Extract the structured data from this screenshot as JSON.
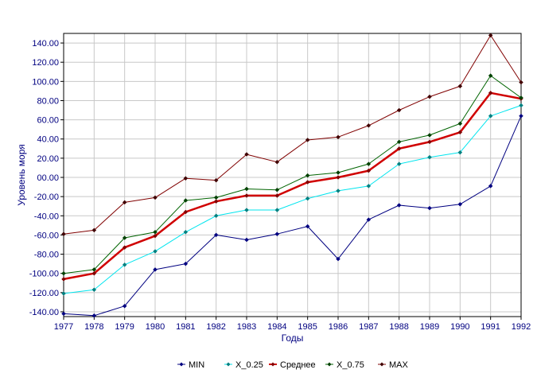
{
  "chart_data": {
    "type": "line",
    "xlabel": "Годы",
    "ylabel": "Уровень моря",
    "x": [
      1977,
      1978,
      1979,
      1980,
      1981,
      1982,
      1983,
      1984,
      1985,
      1986,
      1987,
      1988,
      1989,
      1990,
      1991,
      1992
    ],
    "x_ticks": [
      "1977",
      "1978",
      "1979",
      "1980",
      "1981",
      "1982",
      "1983",
      "1984",
      "1985",
      "1986",
      "1987",
      "1988",
      "1989",
      "1990",
      "1991",
      "1992"
    ],
    "ylim": [
      -145,
      150
    ],
    "y_ticks": [
      -140,
      -120,
      -100,
      -80,
      -60,
      -40,
      -20,
      0,
      20,
      40,
      60,
      80,
      100,
      120,
      140
    ],
    "y_tick_labels": [
      "-140.00",
      "-120.00",
      "-100.00",
      "-80.00",
      "-60.00",
      "-40.00",
      "-20.00",
      "00.00",
      "20.00",
      "40.00",
      "60.00",
      "80.00",
      "100.00",
      "120.00",
      "140.00"
    ],
    "grid": true,
    "legend_position": "bottom",
    "series": [
      {
        "name": "MIN",
        "color": "#000080",
        "marker": "#000080",
        "width": 1,
        "values": [
          -142,
          -144,
          -134,
          -96,
          -90,
          -60,
          -65,
          -59,
          -51,
          -85,
          -44,
          -29,
          -32,
          -28,
          -9,
          64
        ]
      },
      {
        "name": "X_0.25",
        "color": "#00e5ee",
        "marker": "#008080",
        "width": 1,
        "values": [
          -121,
          -117,
          -91,
          -77,
          -57,
          -40,
          -34,
          -34,
          -22,
          -14,
          -9,
          14,
          21,
          26,
          64,
          75
        ]
      },
      {
        "name": "Среднее",
        "color": "#d00000",
        "marker": "#800000",
        "width": 2.5,
        "values": [
          -106,
          -100,
          -73,
          -61,
          -36,
          -25,
          -19,
          -19,
          -5,
          0,
          7,
          30,
          37,
          47,
          88,
          82
        ]
      },
      {
        "name": "X_0.75",
        "color": "#006400",
        "marker": "#004000",
        "width": 1,
        "values": [
          -100,
          -96,
          -63,
          -57,
          -24,
          -21,
          -12,
          -13,
          2,
          5,
          14,
          37,
          44,
          56,
          106,
          83
        ]
      },
      {
        "name": "MAX",
        "color": "#800000",
        "marker": "#400000",
        "width": 1,
        "values": [
          -59,
          -55,
          -26,
          -21,
          -1,
          -3,
          24,
          16,
          39,
          42,
          54,
          70,
          84,
          95,
          148,
          99
        ]
      }
    ]
  }
}
